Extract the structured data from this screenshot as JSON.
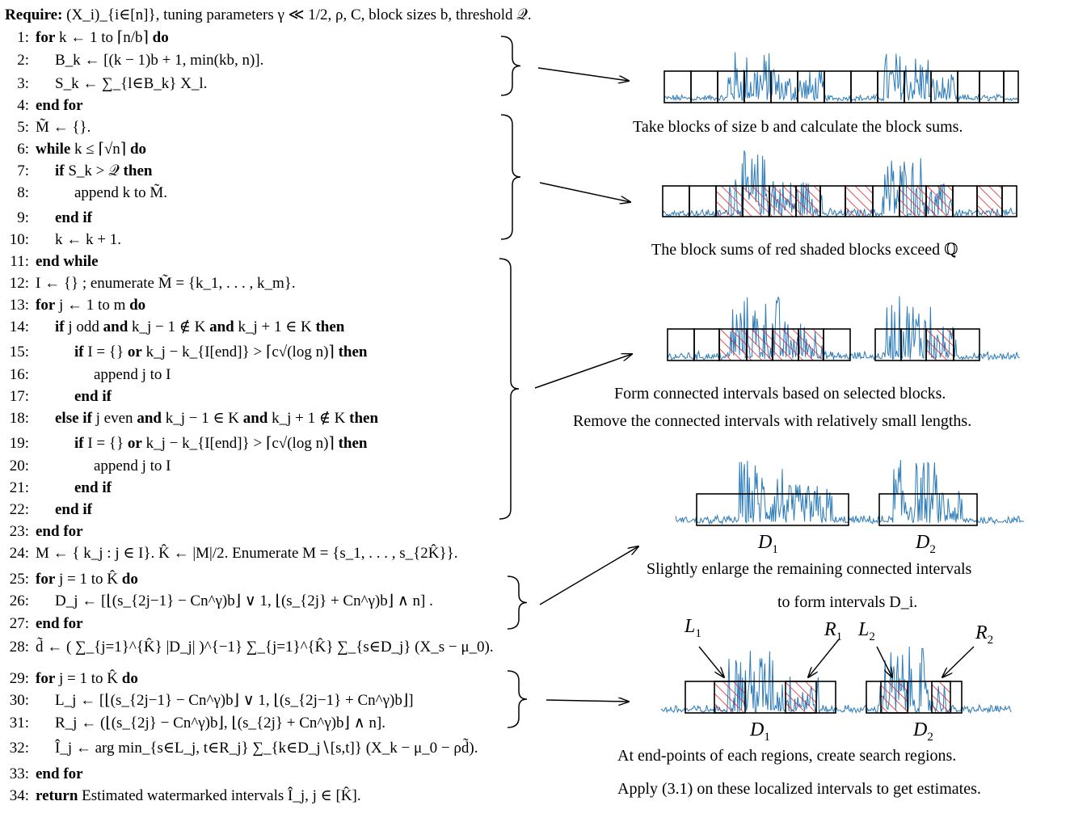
{
  "algorithm": {
    "require": "Require: (X_i)_{i∈[n]}, tuning parameters γ ≪ 1/2, ρ, C, block sizes b, threshold 𝒬.",
    "lines": [
      {
        "n": "1:",
        "indent": 0,
        "text": "for k ← 1 to ⌈n/b⌉ do"
      },
      {
        "n": "2:",
        "indent": 1,
        "text": "B_k ← [(k − 1)b + 1, min(kb, n)]."
      },
      {
        "n": "3:",
        "indent": 1,
        "text": "S_k ← ∑_{l∈B_k} X_l."
      },
      {
        "n": "4:",
        "indent": 0,
        "text": "end for"
      },
      {
        "n": "5:",
        "indent": 0,
        "text": "M̃ ← {}."
      },
      {
        "n": "6:",
        "indent": 0,
        "text": "while k ≤ ⌈√n⌉ do"
      },
      {
        "n": "7:",
        "indent": 1,
        "text": "if S_k > 𝒬 then"
      },
      {
        "n": "8:",
        "indent": 2,
        "text": "append k to M̃."
      },
      {
        "n": "9:",
        "indent": 1,
        "text": "end if"
      },
      {
        "n": "10:",
        "indent": 1,
        "text": "k ← k + 1."
      },
      {
        "n": "11:",
        "indent": 0,
        "text": "end while"
      },
      {
        "n": "12:",
        "indent": 0,
        "text": "I ← {} ; enumerate M̃ = {k_1, . . . , k_m}."
      },
      {
        "n": "13:",
        "indent": 0,
        "text": "for j ← 1 to m do"
      },
      {
        "n": "14:",
        "indent": 1,
        "text": "if j odd and k_j − 1 ∉ K and k_j + 1 ∈ K then"
      },
      {
        "n": "15:",
        "indent": 2,
        "text": "if I = {} or k_j − k_{I[end]} > ⌈c√(log n)⌉ then"
      },
      {
        "n": "16:",
        "indent": 3,
        "text": "append j to I"
      },
      {
        "n": "17:",
        "indent": 2,
        "text": "end if"
      },
      {
        "n": "18:",
        "indent": 1,
        "text": "else if j even and k_j − 1 ∈ K and k_j + 1 ∉ K then"
      },
      {
        "n": "19:",
        "indent": 2,
        "text": "if I = {} or k_j − k_{I[end]} > ⌈c√(log n)⌉ then"
      },
      {
        "n": "20:",
        "indent": 3,
        "text": "append j to I"
      },
      {
        "n": "21:",
        "indent": 2,
        "text": "end if"
      },
      {
        "n": "22:",
        "indent": 1,
        "text": "end if"
      },
      {
        "n": "23:",
        "indent": 0,
        "text": "end for"
      },
      {
        "n": "24:",
        "indent": 0,
        "text": "M ← { k_j : j ∈ I}. K̂ ← |M|/2. Enumerate M = {s_1, . . . , s_{2K̂}}."
      },
      {
        "n": "25:",
        "indent": 0,
        "text": "for j = 1 to K̂ do"
      },
      {
        "n": "26:",
        "indent": 1,
        "text": "D_j ← [⌊(s_{2j−1} − Cn^γ)b⌋ ∨ 1, ⌊(s_{2j} + Cn^γ)b⌋ ∧ n] ."
      },
      {
        "n": "27:",
        "indent": 0,
        "text": "end for"
      },
      {
        "n": "28:",
        "indent": 0,
        "text": "d̃ ← ( ∑_{j=1}^{K̂} |D_j| )^{−1} ∑_{j=1}^{K̂} ∑_{s∈D_j} (X_s − μ_0)."
      },
      {
        "n": "29:",
        "indent": 0,
        "text": "for j = 1 to K̂ do"
      },
      {
        "n": "30:",
        "indent": 1,
        "text": "L_j ← [⌊(s_{2j−1} − Cn^γ)b⌋ ∨ 1, ⌊(s_{2j−1} + Cn^γ)b⌋]"
      },
      {
        "n": "31:",
        "indent": 1,
        "text": "R_j ← (⌊(s_{2j} − Cn^γ)b⌋, ⌊(s_{2j} + Cn^γ)b⌋ ∧ n]."
      },
      {
        "n": "32:",
        "indent": 1,
        "text": "Î_j ← arg min_{s∈L_j, t∈R_j} ∑_{k∈D_j∖[s,t]} (X_k − μ_0 − ρd̃)."
      },
      {
        "n": "33:",
        "indent": 0,
        "text": "end for"
      },
      {
        "n": "34:",
        "indent": 0,
        "text": "return Estimated watermarked intervals Î_j, j ∈ [K̂]."
      }
    ]
  },
  "captions": {
    "step1": "Take blocks of size b and calculate the block sums.",
    "step2": "The block sums of red shaded blocks exceed ℚ",
    "step3_line1": "Form connected intervals based on selected blocks.",
    "step3_line2": "Remove the connected intervals with relatively small lengths.",
    "step4_line1": "Slightly enlarge the remaining connected intervals",
    "step4_line2": "to form intervals D_i.",
    "step5_line1": "At end-points of each regions, create search regions.",
    "step5_line2": "Apply (3.1) on these localized intervals to get estimates."
  },
  "labels": {
    "D1": "D",
    "D1_sub": "1",
    "D2": "D",
    "D2_sub": "2",
    "L1": "L",
    "L1_sub": "1",
    "R1": "R",
    "R1_sub": "1",
    "L2": "L",
    "L2_sub": "2",
    "R2": "R",
    "R2_sub": "2",
    "D1b": "D",
    "D1b_sub": "1",
    "D2b": "D",
    "D2b_sub": "2"
  },
  "colors": {
    "signal": "#2b7bba",
    "hatch": "#e0242a",
    "box": "#000000"
  }
}
